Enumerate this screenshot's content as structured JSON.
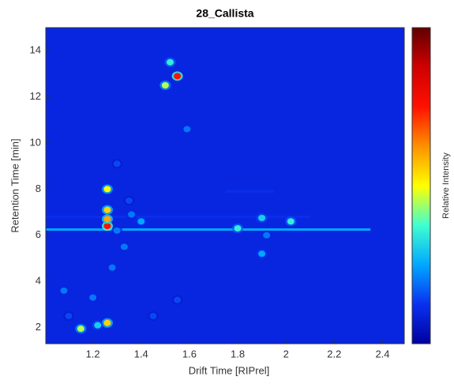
{
  "chart_data": {
    "type": "heatmap",
    "title": "28_Callista",
    "x_label": "Drift Time [RIPrel]",
    "y_label": "Retention Time [min]",
    "colorbar_label": "Relative Intensity",
    "xlim": [
      1.005,
      2.49
    ],
    "ylim": [
      1.3,
      15
    ],
    "zlim": [
      0,
      1
    ],
    "xticks": [
      1.2,
      1.4,
      1.6,
      1.8,
      2,
      2.2,
      2.4
    ],
    "yticks": [
      2,
      4,
      6,
      8,
      10,
      12,
      14
    ],
    "colormap": [
      "#0000a0",
      "#0a30f0",
      "#00a8ff",
      "#40ffd0",
      "#ffff00",
      "#ff9000",
      "#ff1000",
      "#d00000",
      "#600000"
    ],
    "spots": {
      "x": [
        1.26,
        1.26,
        1.26,
        1.26,
        1.55,
        1.5,
        1.52,
        1.8,
        1.9,
        2.02,
        1.9,
        1.92,
        1.4,
        1.36,
        1.3,
        1.26,
        1.15,
        1.08,
        1.59,
        1.55,
        1.33,
        1.3,
        1.35,
        1.28,
        1.1,
        1.2,
        1.22,
        1.45
      ],
      "y": [
        6.4,
        6.7,
        7.1,
        8.0,
        12.9,
        12.5,
        13.5,
        6.3,
        6.75,
        6.6,
        5.2,
        6.0,
        6.6,
        6.9,
        6.2,
        2.2,
        1.95,
        3.6,
        10.6,
        3.2,
        5.5,
        9.1,
        7.5,
        4.6,
        2.5,
        3.3,
        2.1,
        2.5
      ],
      "z": [
        0.75,
        0.6,
        0.55,
        0.5,
        0.75,
        0.45,
        0.35,
        0.35,
        0.3,
        0.35,
        0.25,
        0.2,
        0.25,
        0.2,
        0.2,
        0.55,
        0.45,
        0.2,
        0.2,
        0.15,
        0.2,
        0.15,
        0.15,
        0.2,
        0.15,
        0.2,
        0.3,
        0.15
      ]
    },
    "ridges": {
      "y": [
        6.25,
        6.8,
        7.9
      ],
      "x0": [
        1.005,
        1.005,
        1.75
      ],
      "x1": [
        2.35,
        2.1,
        1.95
      ],
      "z": [
        0.25,
        0.12,
        0.12
      ]
    }
  }
}
